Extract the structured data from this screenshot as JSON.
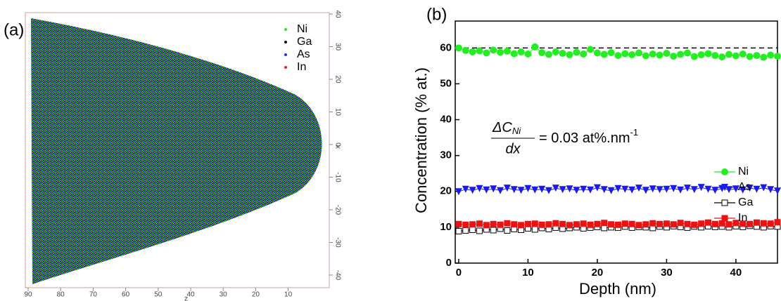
{
  "panel_a": {
    "label": "(a)",
    "legend": [
      {
        "name": "Ni",
        "color": "#22ee22"
      },
      {
        "name": "Ga",
        "color": "#111111"
      },
      {
        "name": "As",
        "color": "#2233ee"
      },
      {
        "name": "In",
        "color": "#ee2222"
      }
    ],
    "z_axis": {
      "label": "z",
      "ticks": [
        90,
        80,
        70,
        60,
        50,
        40,
        30,
        20,
        10
      ]
    },
    "x_axis": {
      "label": "x",
      "ticks": [
        40,
        30,
        20,
        10,
        0,
        -10,
        -20,
        -30,
        -40
      ]
    }
  },
  "chart_data": {
    "type": "line",
    "panel_label": "(b)",
    "xlabel": "Depth (nm)",
    "ylabel": "Concentration (% at.)",
    "xlim": [
      -0.5,
      46.0
    ],
    "ylim": [
      0,
      67.5
    ],
    "xticks": [
      0,
      10,
      20,
      30,
      40
    ],
    "yticks": [
      0,
      10,
      20,
      30,
      40,
      50,
      60
    ],
    "reference_line": 60,
    "equation": {
      "numerator": "ΔC",
      "numerator_sub": "Ni",
      "denominator": "dx",
      "rhs": "= 0.03 at%.nm",
      "rhs_sup": "-1"
    },
    "legend_position": "right",
    "x": [
      0,
      1,
      2,
      3,
      4,
      5,
      6,
      7,
      8,
      9,
      10,
      11,
      12,
      13,
      14,
      15,
      16,
      17,
      18,
      19,
      20,
      21,
      22,
      23,
      24,
      25,
      26,
      27,
      28,
      29,
      30,
      31,
      32,
      33,
      34,
      35,
      36,
      37,
      38,
      39,
      40,
      41,
      42,
      43,
      44,
      45,
      46
    ],
    "series": [
      {
        "name": "Ni",
        "color": "#22ee22",
        "marker": "circle",
        "values": [
          60.0,
          59.3,
          58.9,
          59.2,
          58.6,
          59.4,
          58.8,
          59.1,
          58.4,
          58.9,
          58.3,
          60.3,
          58.7,
          58.2,
          58.9,
          58.5,
          58.1,
          58.8,
          58.3,
          59.6,
          58.6,
          58.2,
          58.7,
          57.9,
          58.4,
          58.1,
          58.6,
          57.8,
          58.3,
          58.0,
          58.5,
          57.7,
          58.2,
          58.6,
          57.6,
          58.1,
          58.4,
          57.9,
          57.5,
          58.2,
          57.8,
          58.3,
          57.6,
          57.9,
          57.4,
          58.0,
          57.7
        ]
      },
      {
        "name": "As",
        "color": "#1a1aee",
        "marker": "triangle-down",
        "values": [
          19.9,
          20.6,
          20.3,
          20.8,
          20.4,
          20.7,
          20.2,
          20.9,
          20.5,
          20.3,
          20.8,
          20.4,
          20.6,
          20.2,
          20.9,
          20.5,
          20.7,
          20.3,
          20.6,
          20.4,
          21.0,
          20.5,
          20.2,
          20.8,
          20.6,
          20.4,
          20.9,
          20.3,
          20.7,
          20.5,
          20.6,
          20.8,
          20.4,
          20.9,
          20.5,
          21.1,
          20.6,
          20.3,
          20.8,
          20.5,
          20.7,
          20.4,
          20.9,
          20.6,
          21.0,
          20.5,
          20.1
        ]
      },
      {
        "name": "Ga",
        "color": "#000000",
        "marker": "open-square",
        "values": [
          8.9,
          9.1,
          9.3,
          9.0,
          9.4,
          9.2,
          9.6,
          9.1,
          9.5,
          9.3,
          9.7,
          9.4,
          9.8,
          9.5,
          9.9,
          9.6,
          9.8,
          10.0,
          9.7,
          9.9,
          10.1,
          9.8,
          10.0,
          9.9,
          10.2,
          9.9,
          10.1,
          10.0,
          9.8,
          10.2,
          10.0,
          10.3,
          10.1,
          9.9,
          10.2,
          10.0,
          10.3,
          10.1,
          10.2,
          10.0,
          10.3,
          10.1,
          10.4,
          10.2,
          10.0,
          10.3,
          10.2
        ]
      },
      {
        "name": "In",
        "color": "#ee1111",
        "marker": "square",
        "values": [
          10.9,
          10.7,
          10.8,
          11.0,
          10.6,
          10.9,
          10.7,
          11.1,
          10.8,
          10.6,
          10.9,
          11.0,
          10.7,
          10.8,
          11.1,
          10.9,
          10.6,
          10.8,
          11.0,
          10.7,
          10.9,
          11.2,
          10.8,
          10.7,
          11.0,
          10.9,
          10.6,
          10.8,
          11.1,
          10.9,
          11.0,
          10.8,
          11.2,
          10.9,
          10.7,
          11.0,
          11.3,
          10.9,
          11.1,
          10.8,
          11.2,
          11.0,
          10.9,
          11.3,
          11.1,
          11.0,
          11.4
        ]
      }
    ]
  }
}
